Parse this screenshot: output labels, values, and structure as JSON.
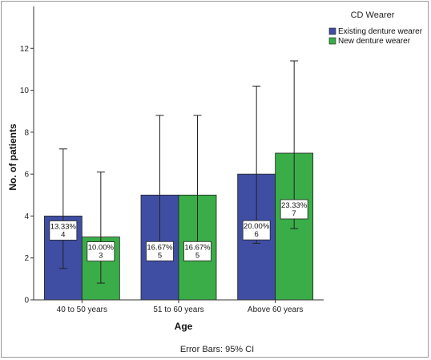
{
  "chart_data": {
    "type": "bar",
    "xlabel": "Age",
    "ylabel": "No. of patients",
    "ylim": [
      0,
      14
    ],
    "yticks": [
      0,
      2,
      4,
      6,
      8,
      10,
      12
    ],
    "categories": [
      "40 to 50 years",
      "51 to 60 years",
      "Above 60 years"
    ],
    "legend_title": "CD Wearer",
    "legend_position": "top-right",
    "grid": false,
    "series": [
      {
        "name": "Existing denture wearer",
        "color": "#3f4ea3",
        "values": [
          4,
          5,
          6
        ],
        "ci_low": [
          1.5,
          2.1,
          2.7
        ],
        "ci_high": [
          7.2,
          8.8,
          10.2
        ],
        "labels": [
          [
            "13.33%",
            "4"
          ],
          [
            "16.67%",
            "5"
          ],
          [
            "20.00%",
            "6"
          ]
        ]
      },
      {
        "name": "New denture wearer",
        "color": "#3aad48",
        "values": [
          3,
          5,
          7
        ],
        "ci_low": [
          0.8,
          2.1,
          3.4
        ],
        "ci_high": [
          6.1,
          8.8,
          11.4
        ],
        "labels": [
          [
            "10.00%",
            "3"
          ],
          [
            "16.67%",
            "5"
          ],
          [
            "23.33%",
            "7"
          ]
        ]
      }
    ],
    "footer": "Error Bars: 95% CI"
  }
}
